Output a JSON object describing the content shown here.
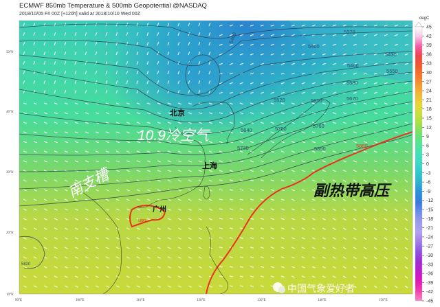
{
  "header": {
    "title": "ECMWF 850mb Temperature & 500mb Geopotential @NASDAQ",
    "subtitle": "2018/10/05 Fri 00Z [+120h] valid at 2018/10/10 Wed 00Z"
  },
  "map": {
    "lat_labels": [
      "50°N",
      "40°N",
      "30°N",
      "20°N",
      "10°N"
    ],
    "lon_labels": [
      "90°E",
      "100°E",
      "110°E",
      "120°E",
      "130°E",
      "140°E",
      "150°E"
    ],
    "contour_labels": [
      "5370",
      "5430",
      "5460",
      "5550",
      "5580",
      "5610",
      "5670",
      "5400",
      "5520",
      "5640",
      "5700",
      "5760",
      "5730",
      "5850",
      "5880",
      "5880",
      "5820",
      "5400"
    ],
    "annotations": {
      "beijing": "北京",
      "shanghai": "上海",
      "guangzhou": "广州",
      "cold_air": "10.9冷空气",
      "south_trough": "南支槽",
      "subtropical_high": "副热带高压"
    },
    "highlight_contour_color": "#e8321e",
    "contour_color": "#2f3f4f"
  },
  "colorbar": {
    "unit": "degC",
    "ticks": [
      "45",
      "42",
      "39",
      "36",
      "33",
      "30",
      "27",
      "24",
      "21",
      "18",
      "15",
      "12",
      "9",
      "6",
      "3",
      "0",
      "-3",
      "-6",
      "-9",
      "-12",
      "-15",
      "-18",
      "-21",
      "-24",
      "-27",
      "-30",
      "-33",
      "-36",
      "-39",
      "-42",
      "-45"
    ],
    "colors": [
      "#ffffff",
      "#f9c6e6",
      "#f55aa6",
      "#f0464a",
      "#f25a2a",
      "#f5762a",
      "#f59a30",
      "#f2bc34",
      "#e8d636",
      "#c8df3a",
      "#a0e048",
      "#6ee070",
      "#4ee69a",
      "#44e0b8",
      "#3cd8c8",
      "#2fc6c8",
      "#2eaed2",
      "#2a8ede",
      "#3a7ae0",
      "#6e8ee8",
      "#9a9cec",
      "#b0a0ee",
      "#a07ce8",
      "#9050e0",
      "#a02cd8",
      "#c01ccc",
      "#e018b8",
      "#f040a8",
      "#f888c8"
    ]
  },
  "watermark": "中国气象爱好者"
}
